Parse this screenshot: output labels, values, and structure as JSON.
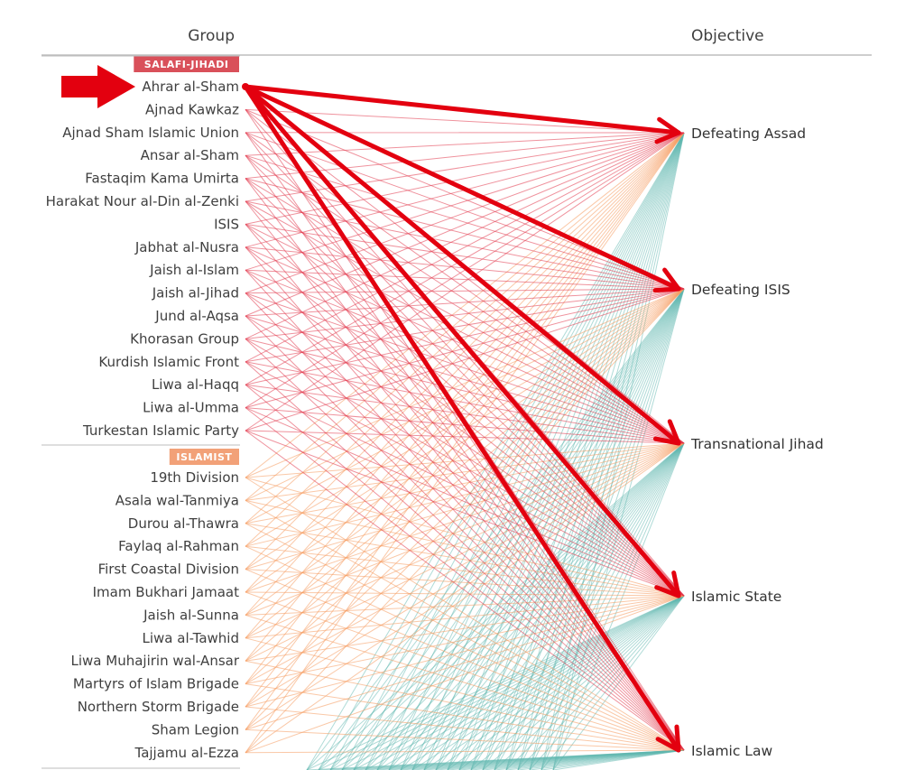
{
  "header": {
    "group": "Group",
    "objective": "Objective"
  },
  "categories": [
    {
      "label": "SALAFI-JIHADI",
      "badge_color": "#d9505a",
      "line_color": "#e2384c",
      "groups": [
        "Ahrar al-Sham",
        "Ajnad Kawkaz",
        "Ajnad Sham Islamic Union",
        "Ansar al-Sham",
        "Fastaqim Kama Umirta",
        "Harakat Nour al-Din al-Zenki",
        "ISIS",
        "Jabhat al-Nusra",
        "Jaish al-Islam",
        "Jaish al-Jihad",
        "Jund al-Aqsa",
        "Khorasan Group",
        "Kurdish Islamic Front",
        "Liwa al-Haqq",
        "Liwa al-Umma",
        "Turkestan Islamic Party"
      ]
    },
    {
      "label": "ISLAMIST",
      "badge_color": "#f2a178",
      "line_color": "#f59a5e",
      "groups": [
        "19th Division",
        "Asala wal-Tanmiya",
        "Durou al-Thawra",
        "Faylaq al-Rahman",
        "First Coastal Division",
        "Imam Bukhari Jamaat",
        "Jaish al-Sunna",
        "Liwa al-Tawhid",
        "Liwa Muhajirin wal-Ansar",
        "Martyrs of Islam Brigade",
        "Northern Storm Brigade",
        "Sham Legion",
        "Tajjamu al-Ezza"
      ]
    }
  ],
  "objectives": [
    "Defeating Assad",
    "Defeating ISIS",
    "Transnational Jihad",
    "Islamic State",
    "Islamic Law"
  ],
  "lower_category_line_color": "#5fb8b0",
  "annotation": {
    "pointer": "red-arrow",
    "color": "#e3000f",
    "highlighted_group": "Ahrar al-Sham",
    "highlighted_objectives": [
      "Defeating Assad",
      "Defeating ISIS",
      "Transnational Jihad",
      "Islamic State",
      "Islamic Law"
    ]
  }
}
